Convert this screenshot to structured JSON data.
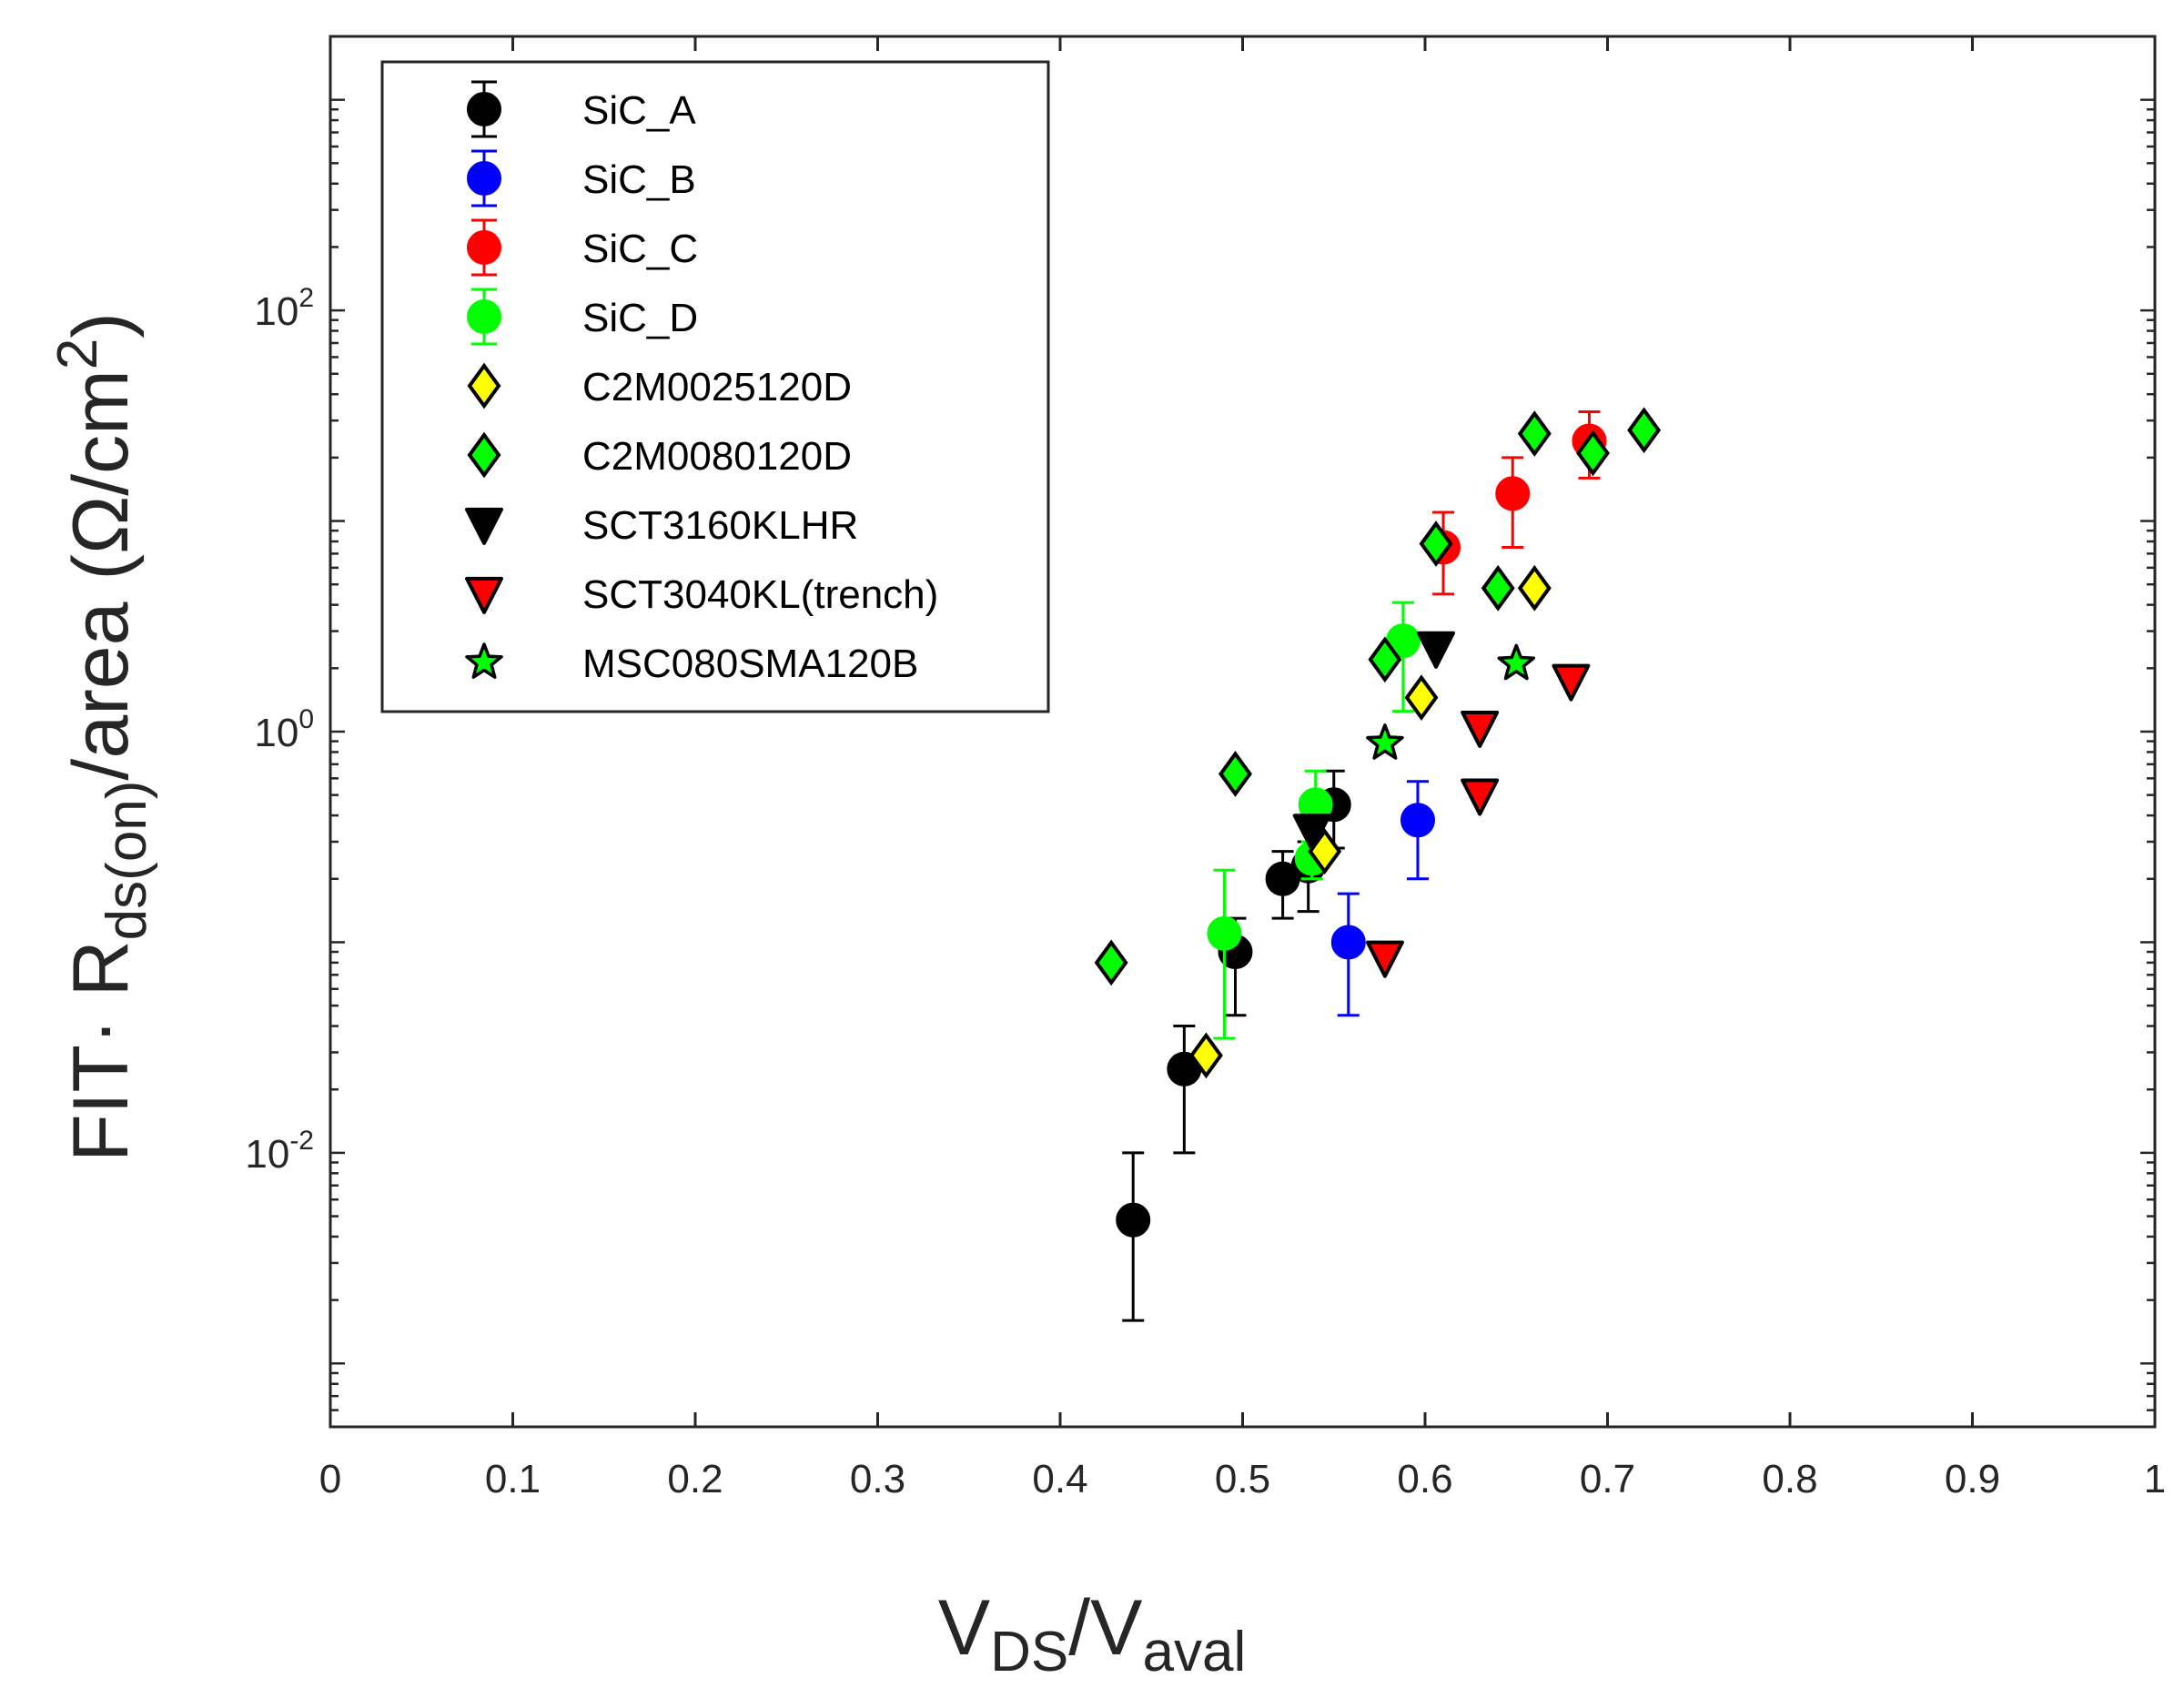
{
  "chart_data": {
    "type": "scatter",
    "xlabel": {
      "main": "V",
      "sub1": "DS",
      "slash": "/V",
      "sub2": "aval"
    },
    "ylabel": {
      "prefix": "FIT· R",
      "sub": "ds(on)",
      "suffix": "/area (Ω/cm",
      "sup": "2",
      "close": ")"
    },
    "xlim": [
      0,
      1
    ],
    "ylim": [
      0.0005,
      2000
    ],
    "yscale": "log",
    "grid": false,
    "legend_position": "top-left",
    "x_ticks": [
      "0",
      "0.1",
      "0.2",
      "0.3",
      "0.4",
      "0.5",
      "0.6",
      "0.7",
      "0.8",
      "0.9",
      "1"
    ],
    "y_ticks": [
      {
        "base": "10",
        "exp": "-2",
        "value": 0.01
      },
      {
        "base": "10",
        "exp": "0",
        "value": 1
      },
      {
        "base": "10",
        "exp": "2",
        "value": 100
      }
    ],
    "series": [
      {
        "name": "SiC_A",
        "marker": "circle",
        "color": "#000000",
        "edge": "#000000",
        "errorbar": true,
        "points": [
          {
            "x": 0.44,
            "y": 0.0048,
            "ylo": 0.0016,
            "yhi": 0.01
          },
          {
            "x": 0.468,
            "y": 0.025,
            "ylo": 0.01,
            "yhi": 0.04
          },
          {
            "x": 0.496,
            "y": 0.09,
            "ylo": 0.045,
            "yhi": 0.13
          },
          {
            "x": 0.522,
            "y": 0.2,
            "ylo": 0.13,
            "yhi": 0.27
          },
          {
            "x": 0.536,
            "y": 0.23,
            "ylo": 0.14,
            "yhi": 0.3
          },
          {
            "x": 0.55,
            "y": 0.45,
            "ylo": 0.28,
            "yhi": 0.65
          }
        ]
      },
      {
        "name": "SiC_B",
        "marker": "circle",
        "color": "#0000FF",
        "edge": "#0000FF",
        "errorbar": true,
        "points": [
          {
            "x": 0.558,
            "y": 0.1,
            "ylo": 0.045,
            "yhi": 0.17
          },
          {
            "x": 0.596,
            "y": 0.38,
            "ylo": 0.2,
            "yhi": 0.58
          }
        ]
      },
      {
        "name": "SiC_C",
        "marker": "circle",
        "color": "#FF0000",
        "edge": "#FF0000",
        "errorbar": true,
        "points": [
          {
            "x": 0.61,
            "y": 7.5,
            "ylo": 4.5,
            "yhi": 11
          },
          {
            "x": 0.648,
            "y": 13.5,
            "ylo": 7.5,
            "yhi": 20
          },
          {
            "x": 0.69,
            "y": 24,
            "ylo": 16,
            "yhi": 33
          }
        ]
      },
      {
        "name": "SiC_D",
        "marker": "circle",
        "color": "#00FF00",
        "edge": "#00FF00",
        "errorbar": true,
        "points": [
          {
            "x": 0.49,
            "y": 0.11,
            "ylo": 0.035,
            "yhi": 0.22
          },
          {
            "x": 0.538,
            "y": 0.25,
            "ylo": 0.2,
            "yhi": 0.3
          },
          {
            "x": 0.54,
            "y": 0.45,
            "ylo": 0.3,
            "yhi": 0.65
          },
          {
            "x": 0.588,
            "y": 2.7,
            "ylo": 1.25,
            "yhi": 4.1
          }
        ]
      },
      {
        "name": "C2M0025120D",
        "marker": "diamond",
        "color": "#FFFF00",
        "edge": "#000000",
        "errorbar": false,
        "points": [
          {
            "x": 0.48,
            "y": 0.029
          },
          {
            "x": 0.545,
            "y": 0.27
          },
          {
            "x": 0.598,
            "y": 1.45
          },
          {
            "x": 0.66,
            "y": 4.8
          }
        ]
      },
      {
        "name": "C2M0080120D",
        "marker": "diamond",
        "color": "#00FF00",
        "edge": "#000000",
        "errorbar": false,
        "points": [
          {
            "x": 0.428,
            "y": 0.08
          },
          {
            "x": 0.496,
            "y": 0.63
          },
          {
            "x": 0.578,
            "y": 2.2
          },
          {
            "x": 0.606,
            "y": 7.8
          },
          {
            "x": 0.64,
            "y": 4.8
          },
          {
            "x": 0.66,
            "y": 26
          },
          {
            "x": 0.692,
            "y": 21
          },
          {
            "x": 0.72,
            "y": 27
          }
        ]
      },
      {
        "name": "SCT3160KLHR",
        "marker": "triangle-down",
        "color": "#000000",
        "edge": "#000000",
        "errorbar": false,
        "points": [
          {
            "x": 0.538,
            "y": 0.34
          },
          {
            "x": 0.606,
            "y": 2.5
          }
        ]
      },
      {
        "name": "SCT3040KL(trench)",
        "marker": "triangle-down",
        "color": "#FF0000",
        "edge": "#000000",
        "errorbar": false,
        "points": [
          {
            "x": 0.578,
            "y": 0.085
          },
          {
            "x": 0.63,
            "y": 1.05
          },
          {
            "x": 0.63,
            "y": 0.5
          },
          {
            "x": 0.68,
            "y": 1.75
          }
        ]
      },
      {
        "name": "MSC080SMA120B",
        "marker": "star",
        "color": "#00FF00",
        "edge": "#000000",
        "errorbar": false,
        "points": [
          {
            "x": 0.578,
            "y": 0.88
          },
          {
            "x": 0.65,
            "y": 2.1
          }
        ]
      }
    ]
  }
}
